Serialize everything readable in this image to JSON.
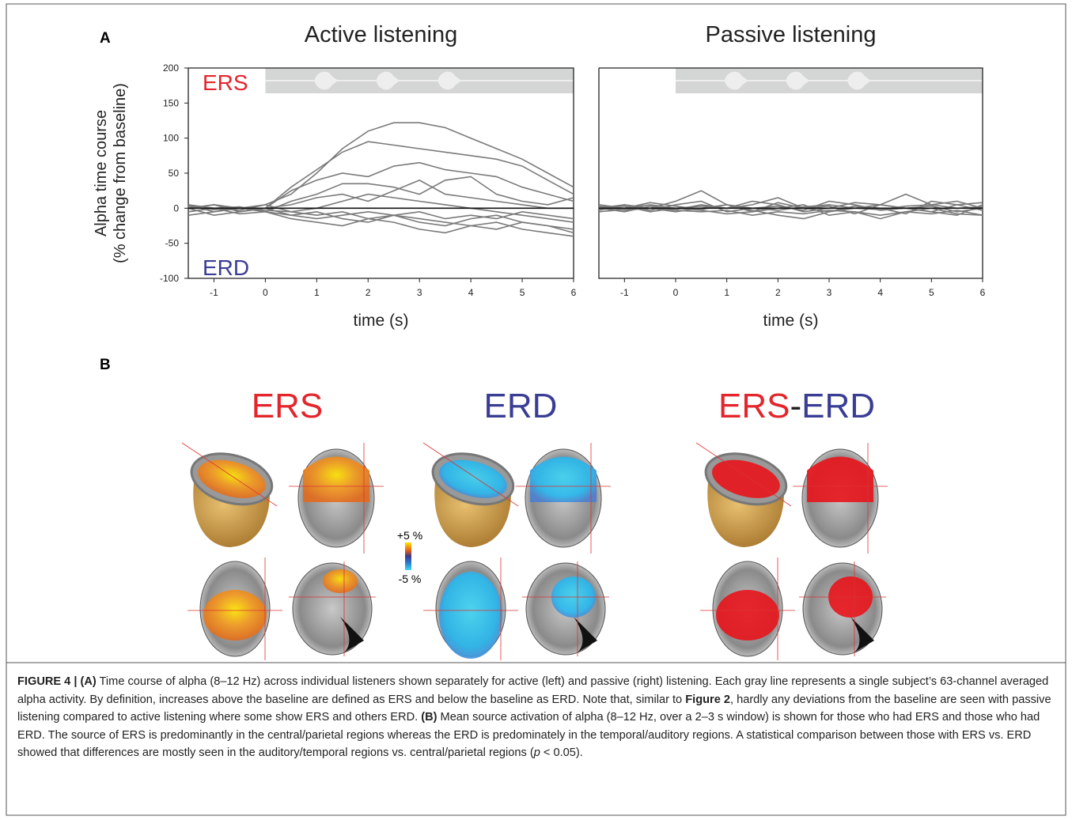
{
  "panel_labels": [
    "A",
    "B"
  ],
  "chart_data": [
    {
      "type": "line",
      "title": "Active listening",
      "xlabel": "time (s)",
      "ylabel": [
        "Alpha time course",
        "(% change from baseline)"
      ],
      "annotations": [
        {
          "text": "ERS",
          "color": "#e2262c"
        },
        {
          "text": "ERD",
          "color": "#3a3d94"
        }
      ],
      "x": [
        -1.5,
        -1,
        -0.5,
        0,
        0.5,
        1,
        1.5,
        2,
        2.5,
        3,
        3.5,
        4,
        4.5,
        5,
        5.5,
        6
      ],
      "series": [
        {
          "color": "#7a7a7a",
          "values": [
            5,
            0,
            -3,
            5,
            20,
            50,
            85,
            110,
            122,
            122,
            115,
            100,
            85,
            70,
            50,
            30
          ]
        },
        {
          "color": "#7a7a7a",
          "values": [
            0,
            5,
            0,
            0,
            30,
            55,
            80,
            95,
            90,
            85,
            80,
            75,
            70,
            60,
            40,
            20
          ]
        },
        {
          "color": "#7a7a7a",
          "values": [
            3,
            -2,
            0,
            0,
            25,
            40,
            50,
            45,
            60,
            65,
            55,
            50,
            45,
            30,
            20,
            10
          ]
        },
        {
          "color": "#7a7a7a",
          "values": [
            -5,
            0,
            2,
            -5,
            10,
            20,
            35,
            35,
            30,
            20,
            40,
            45,
            20,
            10,
            5,
            15
          ]
        },
        {
          "color": "#7a7a7a",
          "values": [
            0,
            5,
            -5,
            0,
            5,
            15,
            20,
            10,
            25,
            40,
            20,
            15,
            10,
            5,
            0,
            0
          ]
        },
        {
          "color": "#7a7a7a",
          "values": [
            5,
            -5,
            0,
            5,
            -5,
            0,
            10,
            20,
            15,
            10,
            5,
            0,
            -5,
            -10,
            -15,
            -20
          ]
        },
        {
          "color": "#7a7a7a",
          "values": [
            -10,
            -5,
            0,
            -5,
            -15,
            -20,
            -25,
            -15,
            -10,
            -20,
            -25,
            -15,
            -10,
            -20,
            -25,
            -30
          ]
        },
        {
          "color": "#7a7a7a",
          "values": [
            0,
            -10,
            -5,
            0,
            -10,
            -5,
            -15,
            -20,
            -10,
            -15,
            -20,
            -25,
            -30,
            -20,
            -25,
            -35
          ]
        },
        {
          "color": "#7a7a7a",
          "values": [
            -5,
            0,
            -8,
            -5,
            -10,
            -15,
            -10,
            -5,
            -10,
            -5,
            -15,
            -10,
            -15,
            -5,
            -10,
            -15
          ]
        },
        {
          "color": "#7a7a7a",
          "values": [
            0,
            5,
            0,
            -3,
            -5,
            -10,
            -5,
            -15,
            -20,
            -30,
            -35,
            -25,
            -20,
            -30,
            -35,
            -40
          ]
        }
      ],
      "xlim": [
        -1.5,
        6
      ],
      "ylim": [
        -100,
        200
      ],
      "xticks": [
        -1,
        0,
        1,
        2,
        3,
        4,
        5,
        6
      ],
      "yticks": [
        -100,
        -50,
        0,
        50,
        100,
        150,
        200
      ]
    },
    {
      "type": "line",
      "title": "Passive listening",
      "xlabel": "time (s)",
      "x": [
        -1.5,
        -1,
        -0.5,
        0,
        0.5,
        1,
        1.5,
        2,
        2.5,
        3,
        3.5,
        4,
        4.5,
        5,
        5.5,
        6
      ],
      "series": [
        {
          "color": "#7a7a7a",
          "values": [
            5,
            0,
            8,
            3,
            -2,
            5,
            0,
            -3,
            2,
            5,
            0,
            -2,
            3,
            5,
            0,
            2
          ]
        },
        {
          "color": "#7a7a7a",
          "values": [
            -3,
            5,
            0,
            10,
            25,
            5,
            -5,
            8,
            0,
            -5,
            3,
            0,
            -8,
            10,
            5,
            -3
          ]
        },
        {
          "color": "#7a7a7a",
          "values": [
            0,
            -5,
            3,
            -2,
            5,
            0,
            10,
            5,
            -5,
            0,
            8,
            5,
            0,
            -5,
            -10,
            5
          ]
        },
        {
          "color": "#7a7a7a",
          "values": [
            2,
            3,
            -5,
            0,
            -3,
            -8,
            -5,
            0,
            5,
            -10,
            -5,
            -15,
            -5,
            0,
            -8,
            -10
          ]
        },
        {
          "color": "#7a7a7a",
          "values": [
            -5,
            -2,
            0,
            -5,
            0,
            5,
            -3,
            -10,
            -15,
            -5,
            0,
            5,
            20,
            5,
            10,
            0
          ]
        },
        {
          "color": "#7a7a7a",
          "values": [
            0,
            5,
            -3,
            5,
            10,
            -5,
            0,
            3,
            -3,
            10,
            5,
            -3,
            0,
            -5,
            5,
            8
          ]
        },
        {
          "color": "#7a7a7a",
          "values": [
            3,
            -3,
            0,
            -3,
            -5,
            -3,
            -10,
            -5,
            -8,
            -3,
            -5,
            -10,
            -5,
            -8,
            -3,
            -10
          ]
        },
        {
          "color": "#7a7a7a",
          "values": [
            -2,
            0,
            5,
            0,
            3,
            0,
            5,
            15,
            0,
            3,
            -8,
            5,
            0,
            3,
            -5,
            0
          ]
        }
      ],
      "xlim": [
        -1.5,
        6
      ],
      "ylim": [
        -100,
        200
      ],
      "xticks": [
        -1,
        0,
        1,
        2,
        3,
        4,
        5,
        6
      ]
    }
  ],
  "panel_b": {
    "titles": [
      "ERS",
      "ERD"
    ],
    "combined_title": [
      "ERS",
      "-",
      "ERD"
    ],
    "colorbar": [
      "+5 %",
      "-5 %"
    ]
  },
  "caption": [
    "FIGURE 4 | (A)",
    " Time course of alpha (8–12 Hz) across individual listeners shown separately for active (left) and passive (right) listening. Each gray line represents a single subject’s 63-channel averaged alpha activity. By definition, increases above the baseline are defined as ERS and below the baseline as ERD. Note that, similar to ",
    "Figure 2",
    ", hardly any deviations from the baseline are seen with passive listening compared to active listening where some show ERS and others ERD. ",
    "(B)",
    " Mean source activation of alpha (8–12 Hz, over a 2–3 s window) is shown for those who had ERS and those who had ERD. The source of ERS is predominantly in the central/parietal regions whereas the ERD is predominately in the temporal/auditory regions. A statistical comparison between those with ERS vs. ERD showed that differences are mostly seen in the auditory/temporal regions vs. central/parietal regions (",
    "p",
    " < 0.05)."
  ]
}
